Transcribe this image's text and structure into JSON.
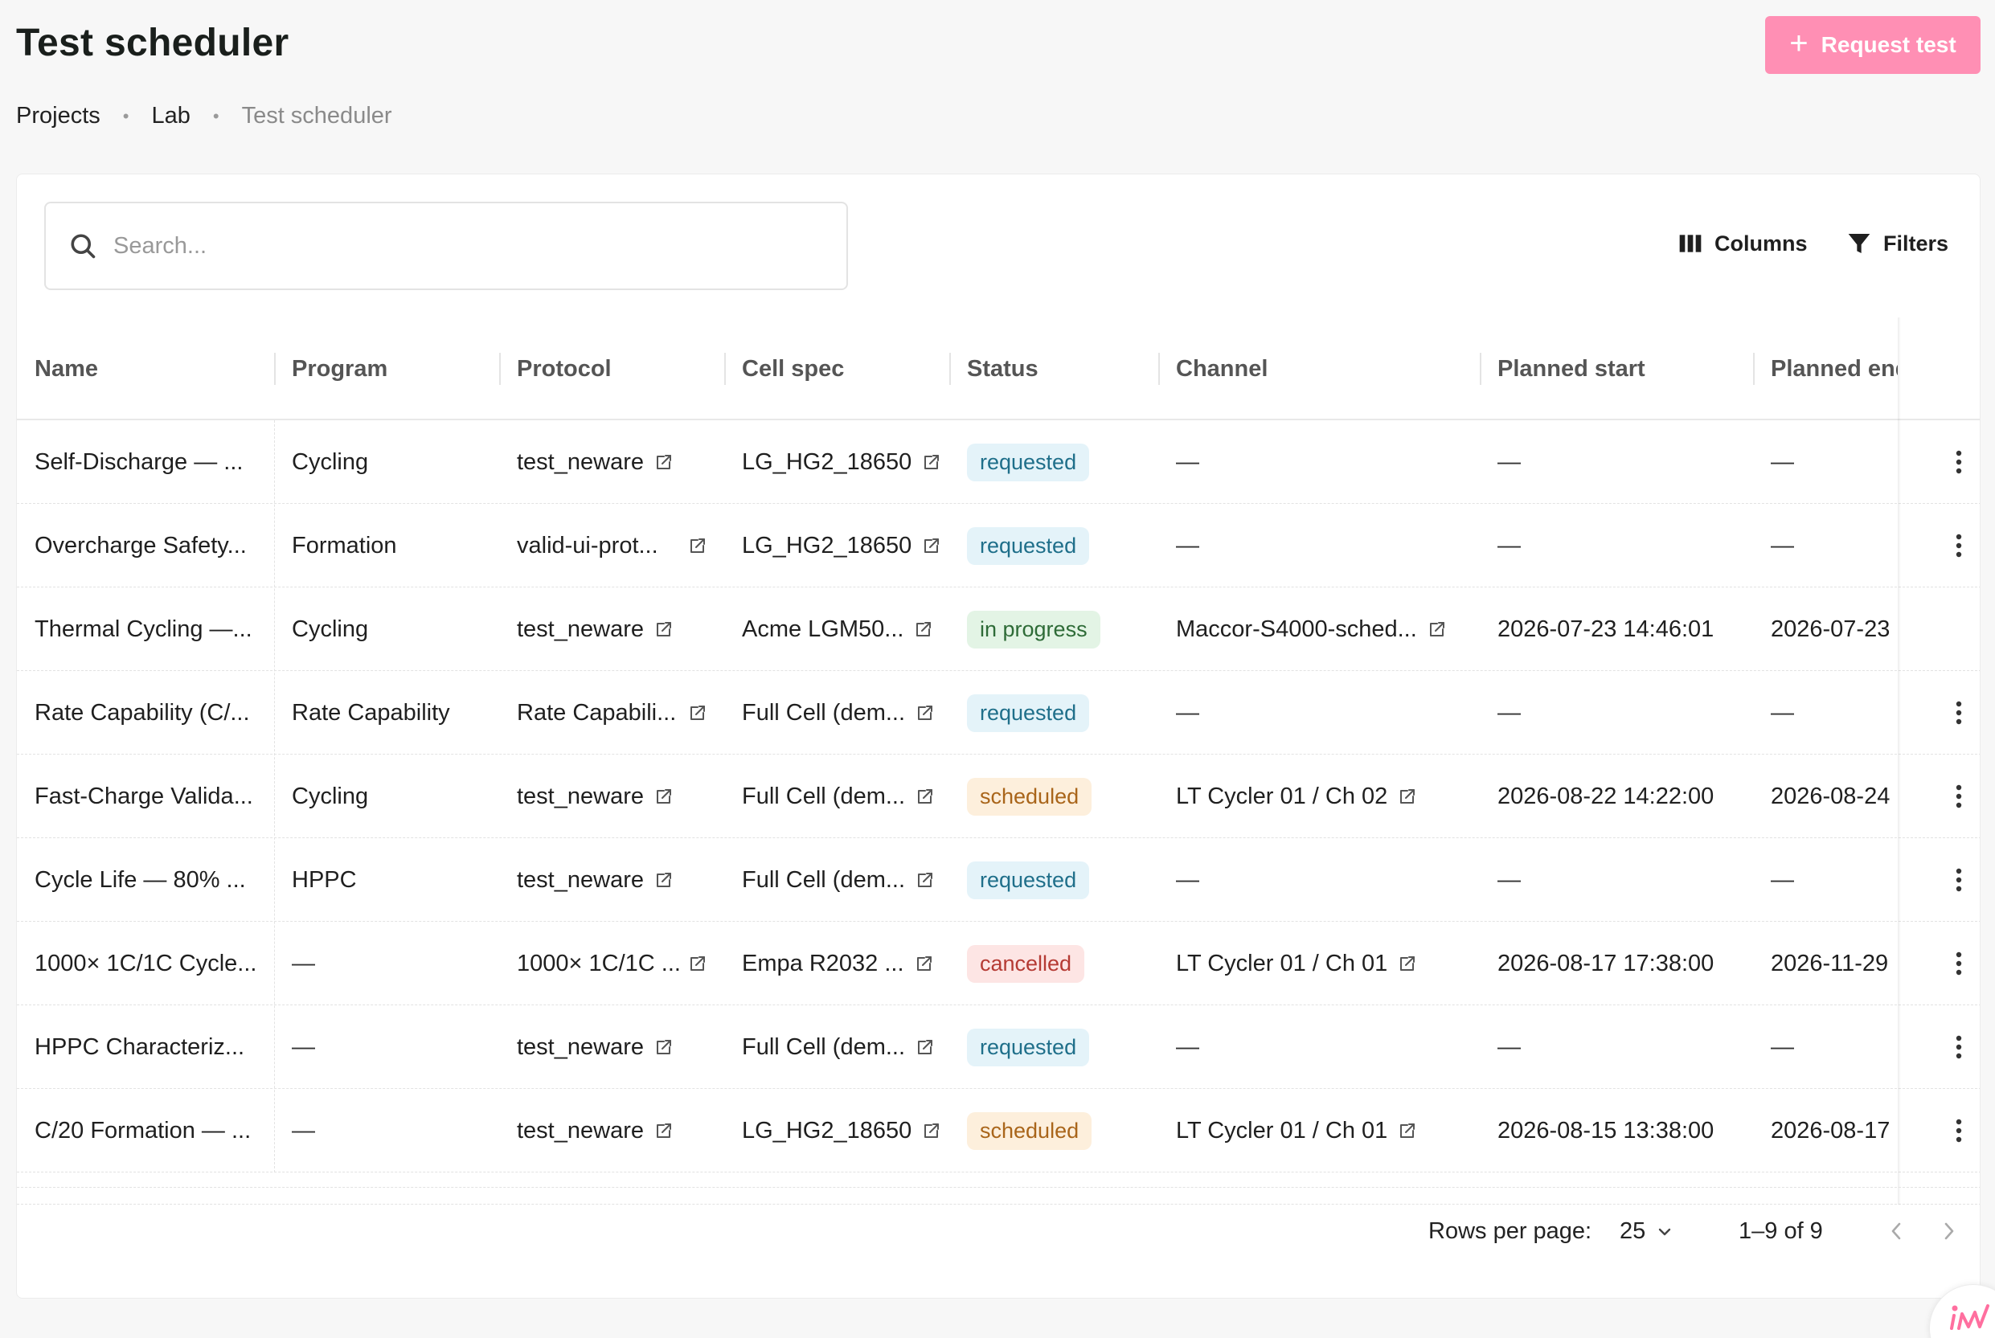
{
  "header": {
    "title": "Test scheduler",
    "request_button": {
      "icon": "plus-icon",
      "label": "Request test"
    }
  },
  "breadcrumb": [
    {
      "label": "Projects"
    },
    {
      "label": "Lab"
    },
    {
      "label": "Test scheduler"
    }
  ],
  "toolbar": {
    "search_placeholder": "Search...",
    "columns_label": "Columns",
    "filters_label": "Filters"
  },
  "table": {
    "columns": [
      "Name",
      "Program",
      "Protocol",
      "Cell spec",
      "Status",
      "Channel",
      "Planned start",
      "Planned end"
    ],
    "rows": [
      {
        "name": "Self-Discharge — ...",
        "program": "Cycling",
        "protocol": "test_neware",
        "cell_spec": "LG_HG2_18650",
        "status": "requested",
        "channel": "—",
        "planned_start": "—",
        "planned_end": "—",
        "has_menu": true
      },
      {
        "name": "Overcharge Safety...",
        "program": "Formation",
        "protocol": "valid-ui-prot...",
        "cell_spec": "LG_HG2_18650",
        "status": "requested",
        "channel": "—",
        "planned_start": "—",
        "planned_end": "—",
        "has_menu": true
      },
      {
        "name": "Thermal Cycling —...",
        "program": "Cycling",
        "protocol": "test_neware",
        "cell_spec": "Acme LGM50...",
        "status": "in progress",
        "channel": "Maccor-S4000-sched...",
        "planned_start": "2026-07-23 14:46:01",
        "planned_end": "2026-07-23",
        "has_menu": false
      },
      {
        "name": "Rate Capability (C/...",
        "program": "Rate Capability",
        "protocol": "Rate Capabili...",
        "cell_spec": "Full Cell (dem...",
        "status": "requested",
        "channel": "—",
        "planned_start": "—",
        "planned_end": "—",
        "has_menu": true
      },
      {
        "name": "Fast-Charge Valida...",
        "program": "Cycling",
        "protocol": "test_neware",
        "cell_spec": "Full Cell (dem...",
        "status": "scheduled",
        "channel": "LT Cycler 01 / Ch 02",
        "planned_start": "2026-08-22 14:22:00",
        "planned_end": "2026-08-24",
        "has_menu": true
      },
      {
        "name": "Cycle Life — 80% ...",
        "program": "HPPC",
        "protocol": "test_neware",
        "cell_spec": "Full Cell (dem...",
        "status": "requested",
        "channel": "—",
        "planned_start": "—",
        "planned_end": "—",
        "has_menu": true
      },
      {
        "name": "1000× 1C/1C Cycle...",
        "program": "—",
        "protocol": "1000× 1C/1C ...",
        "cell_spec": "Empa R2032 ...",
        "status": "cancelled",
        "channel": "LT Cycler 01 / Ch 01",
        "planned_start": "2026-08-17 17:38:00",
        "planned_end": "2026-11-29",
        "has_menu": true
      },
      {
        "name": "HPPC Characteriz...",
        "program": "—",
        "protocol": "test_neware",
        "cell_spec": "Full Cell (dem...",
        "status": "requested",
        "channel": "—",
        "planned_start": "—",
        "planned_end": "—",
        "has_menu": true
      },
      {
        "name": "C/20 Formation — ...",
        "program": "—",
        "protocol": "test_neware",
        "cell_spec": "LG_HG2_18650",
        "status": "scheduled",
        "channel": "LT Cycler 01 / Ch 01",
        "planned_start": "2026-08-15 13:38:00",
        "planned_end": "2026-08-17",
        "has_menu": true
      }
    ]
  },
  "pagination": {
    "rows_per_page_label": "Rows per page:",
    "rows_per_page_value": "25",
    "range_text": "1–9 of 9"
  },
  "colors": {
    "accent": "#ff8fb4",
    "requested": "#1f6f8a",
    "in_progress": "#2e6b37",
    "scheduled": "#a9651a",
    "cancelled": "#b53b34"
  }
}
